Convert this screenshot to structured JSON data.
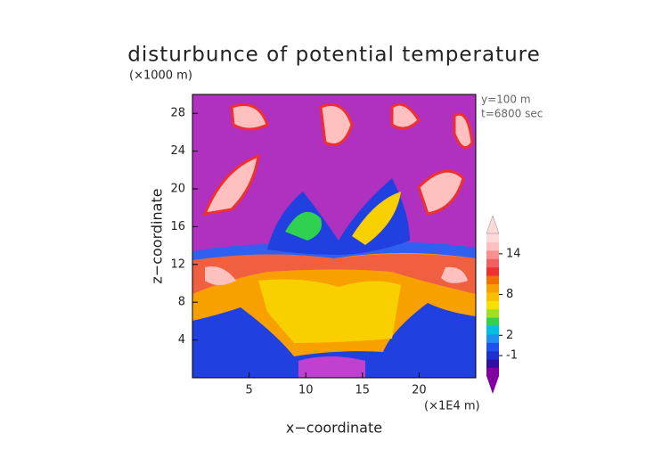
{
  "chart_data": {
    "type": "contour",
    "title": "disturbunce of potential temperature",
    "xlabel": "x−coordinate",
    "ylabel": "z−coordinate",
    "x_unit": "(×1E4 m)",
    "y_unit": "(×1000 m)",
    "annotations": [
      "y=100 m",
      "t=6800 sec"
    ],
    "xlim": [
      0,
      25
    ],
    "xticks": [
      5,
      10,
      15,
      20
    ],
    "ylim": [
      0,
      30
    ],
    "yticks": [
      4,
      8,
      12,
      16,
      20,
      24,
      28
    ],
    "colorbar": {
      "lim": [
        -4,
        17
      ],
      "ticks": [
        -1,
        2,
        8,
        14
      ],
      "colors": [
        "#8000a0",
        "#3010a0",
        "#2030d0",
        "#2050f0",
        "#2090f0",
        "#00c0e0",
        "#30d050",
        "#a0e020",
        "#f8e000",
        "#f8c000",
        "#f8a000",
        "#f07000",
        "#f03030",
        "#f06060",
        "#f89090",
        "#ffc0c0",
        "#ffd8d8"
      ]
    }
  }
}
